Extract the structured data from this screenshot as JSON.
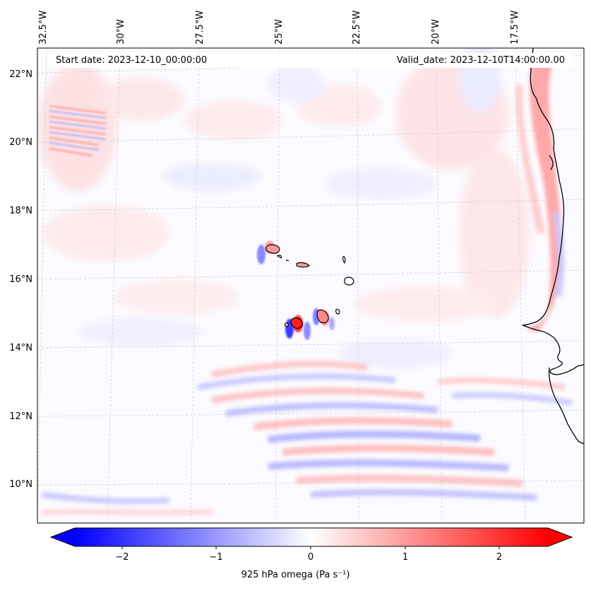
{
  "map": {
    "header": {
      "start_date": "Start date: 2023-12-10_00:00:00",
      "valid_date": "Valid_date: 2023-12-10T14:00:00.00"
    },
    "lat_labels": [
      "22°N",
      "20°N",
      "18°N",
      "16°N",
      "14°N",
      "12°N",
      "10°N"
    ],
    "lon_labels": [
      "32.5°W",
      "30°W",
      "27.5°W",
      "25°W",
      "22.5°W",
      "20°W",
      "17.5°W"
    ],
    "features": [
      "Cape Verde islands",
      "West African coastline"
    ],
    "field": "925 hPa omega",
    "colormap": "bwr",
    "colors": {
      "negative": "#0000ff",
      "zero": "#ffffff",
      "positive": "#ff0000"
    }
  },
  "colorbar": {
    "label": "925 hPa omega (Pa s⁻¹)",
    "ticks": [
      "−2",
      "−1",
      "0",
      "1",
      "2"
    ],
    "range": [
      -2.6,
      2.6
    ],
    "extend": "both"
  }
}
